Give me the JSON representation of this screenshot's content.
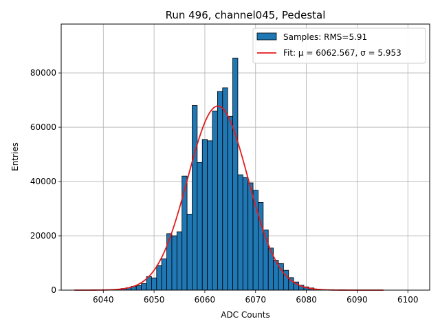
{
  "chart_data": {
    "type": "bar",
    "title": "Run 496, channel045, Pedestal",
    "xlabel": "ADC Counts",
    "ylabel": "Entries",
    "xlim": [
      6031.7,
      6104.3
    ],
    "ylim": [
      0,
      98000
    ],
    "xticks": [
      6040,
      6050,
      6060,
      6070,
      6080,
      6090,
      6100
    ],
    "yticks": [
      0,
      20000,
      40000,
      60000,
      80000
    ],
    "grid": true,
    "legend_position": "top-right",
    "bin_width": 1,
    "histogram": {
      "name": "Samples: RMS=5.91",
      "color": "#1f77b4",
      "bin_centers": [
        6041,
        6042,
        6043,
        6044,
        6045,
        6046,
        6047,
        6048,
        6049,
        6050,
        6051,
        6052,
        6053,
        6054,
        6055,
        6056,
        6057,
        6058,
        6059,
        6060,
        6061,
        6062,
        6063,
        6064,
        6065,
        6066,
        6067,
        6068,
        6069,
        6070,
        6071,
        6072,
        6073,
        6074,
        6075,
        6076,
        6077,
        6078,
        6079,
        6080,
        6081,
        6082,
        6083,
        6084
      ],
      "counts": [
        150,
        200,
        350,
        600,
        900,
        1400,
        1700,
        2400,
        5000,
        4500,
        9000,
        11500,
        20800,
        20000,
        21500,
        42000,
        28000,
        68000,
        47000,
        55500,
        55000,
        66000,
        73200,
        74500,
        64000,
        85500,
        42500,
        41500,
        39500,
        36800,
        32300,
        22200,
        15500,
        11000,
        9800,
        7300,
        4600,
        3000,
        1800,
        1200,
        800,
        400,
        200,
        100
      ]
    },
    "fit": {
      "name": "Fit: μ = 6062.567, σ = 5.953",
      "color": "#e41a1c",
      "type": "gaussian",
      "mu": 6062.567,
      "sigma": 5.953,
      "amplitude": 67800,
      "x_range": [
        6034.3,
        6095.2
      ]
    }
  }
}
